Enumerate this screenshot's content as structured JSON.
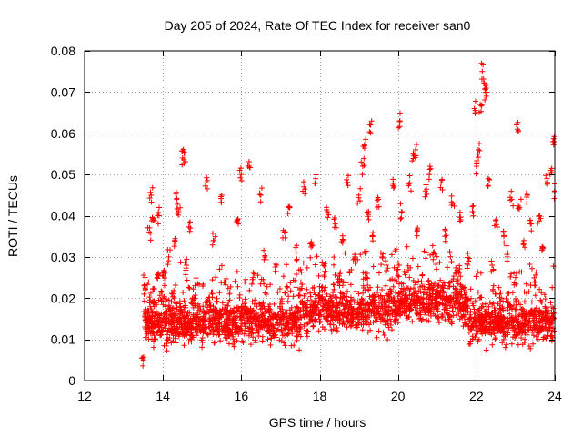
{
  "chart_data": {
    "type": "scatter",
    "title": "Day 205 of 2024, Rate Of TEC Index for receiver san0",
    "xlabel": "GPS time / hours",
    "ylabel": "ROTI / TECUs",
    "xlim": [
      12,
      24
    ],
    "ylim": [
      0,
      0.08
    ],
    "x_ticks": [
      12,
      14,
      16,
      18,
      20,
      22,
      24
    ],
    "x_tick_labels": [
      "12",
      "14",
      "16",
      "18",
      "20",
      "22",
      "24"
    ],
    "y_ticks": [
      0,
      0.01,
      0.02,
      0.03,
      0.04,
      0.05,
      0.06,
      0.07,
      0.08
    ],
    "y_tick_labels": [
      "0",
      "0.01",
      "0.02",
      "0.03",
      "0.04",
      "0.05",
      "0.06",
      "0.07",
      "0.08"
    ],
    "grid": true,
    "marker": "plus",
    "color": "#ff0000",
    "series": [
      {
        "name": "ROTI",
        "x": [
          13.5,
          13.55,
          13.6,
          13.65,
          13.7,
          13.72,
          13.75,
          13.78,
          13.8,
          13.85,
          13.9,
          13.95,
          14.0,
          14.05,
          14.1,
          14.15,
          14.2,
          14.25,
          14.3,
          14.35,
          14.38,
          14.4,
          14.45,
          14.5,
          14.55,
          14.6,
          14.65,
          14.7,
          14.75,
          14.8,
          14.9,
          15.0,
          15.1,
          15.2,
          15.3,
          15.4,
          15.5,
          15.6,
          15.7,
          15.8,
          15.9,
          16.0,
          16.1,
          16.2,
          16.3,
          16.4,
          16.5,
          16.6,
          16.7,
          16.8,
          16.9,
          17.0,
          17.1,
          17.2,
          17.3,
          17.4,
          17.5,
          17.6,
          17.7,
          17.8,
          17.9,
          18.0,
          18.1,
          18.2,
          18.3,
          18.4,
          18.5,
          18.6,
          18.7,
          18.8,
          18.9,
          19.0,
          19.1,
          19.15,
          19.2,
          19.25,
          19.3,
          19.35,
          19.4,
          19.5,
          19.6,
          19.7,
          19.8,
          19.9,
          20.0,
          20.05,
          20.1,
          20.2,
          20.3,
          20.4,
          20.45,
          20.5,
          20.6,
          20.7,
          20.8,
          20.9,
          21.0,
          21.1,
          21.2,
          21.3,
          21.4,
          21.5,
          21.6,
          21.7,
          21.8,
          21.9,
          21.95,
          22.0,
          22.05,
          22.1,
          22.15,
          22.2,
          22.25,
          22.3,
          22.4,
          22.5,
          22.6,
          22.7,
          22.8,
          22.9,
          23.0,
          23.05,
          23.1,
          23.2,
          23.3,
          23.4,
          23.5,
          23.6,
          23.7,
          23.8,
          23.9,
          23.95,
          24.0
        ],
        "y": [
          0.005,
          0.022,
          0.015,
          0.036,
          0.045,
          0.012,
          0.039,
          0.018,
          0.01,
          0.025,
          0.04,
          0.014,
          0.02,
          0.026,
          0.009,
          0.03,
          0.016,
          0.021,
          0.034,
          0.044,
          0.012,
          0.041,
          0.018,
          0.054,
          0.055,
          0.028,
          0.015,
          0.037,
          0.011,
          0.02,
          0.017,
          0.013,
          0.048,
          0.019,
          0.034,
          0.012,
          0.045,
          0.016,
          0.021,
          0.014,
          0.039,
          0.05,
          0.018,
          0.052,
          0.025,
          0.013,
          0.045,
          0.03,
          0.017,
          0.011,
          0.028,
          0.019,
          0.036,
          0.042,
          0.015,
          0.031,
          0.022,
          0.047,
          0.012,
          0.033,
          0.049,
          0.02,
          0.028,
          0.041,
          0.016,
          0.038,
          0.024,
          0.034,
          0.048,
          0.014,
          0.03,
          0.045,
          0.052,
          0.057,
          0.025,
          0.041,
          0.062,
          0.035,
          0.019,
          0.044,
          0.03,
          0.028,
          0.021,
          0.047,
          0.027,
          0.063,
          0.041,
          0.018,
          0.048,
          0.055,
          0.056,
          0.037,
          0.024,
          0.046,
          0.05,
          0.031,
          0.021,
          0.048,
          0.035,
          0.016,
          0.043,
          0.026,
          0.039,
          0.014,
          0.029,
          0.041,
          0.066,
          0.052,
          0.056,
          0.067,
          0.075,
          0.072,
          0.069,
          0.049,
          0.028,
          0.039,
          0.021,
          0.035,
          0.031,
          0.044,
          0.025,
          0.061,
          0.042,
          0.033,
          0.045,
          0.038,
          0.024,
          0.04,
          0.032,
          0.049,
          0.051,
          0.058,
          0.046
        ],
        "bulk": {
          "x_range": [
            13.5,
            24
          ],
          "y_range": [
            0.004,
            0.028
          ],
          "points": 2600,
          "note": "dense band of points between 0.005 and 0.025 TECU across the observation window"
        }
      }
    ]
  }
}
